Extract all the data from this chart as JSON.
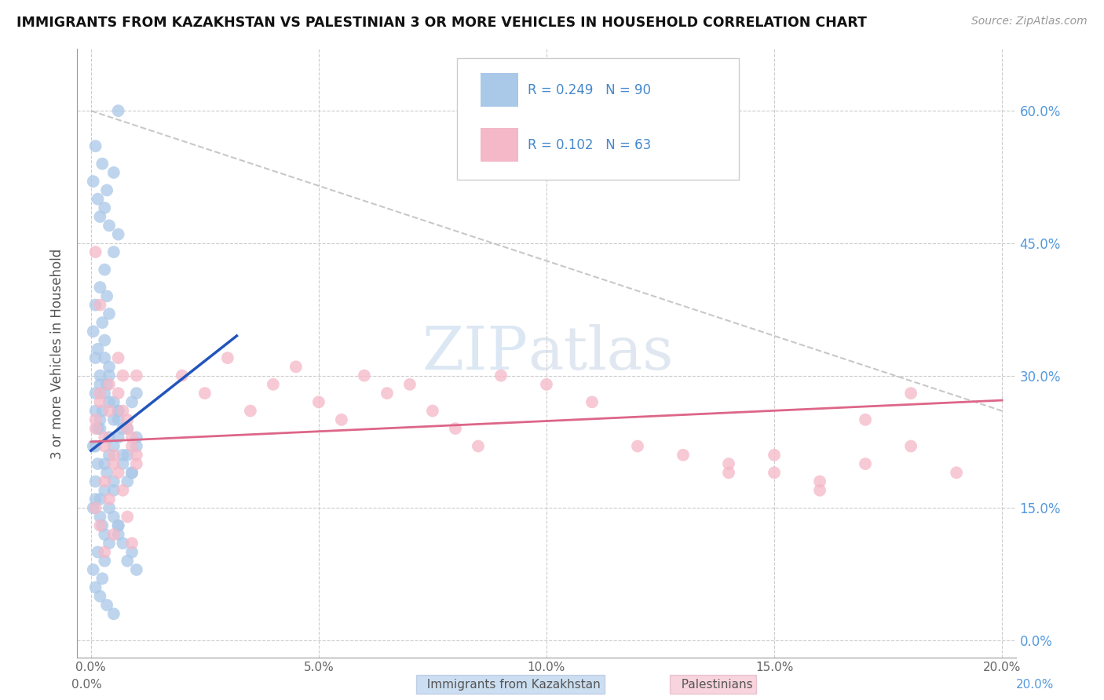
{
  "title": "IMMIGRANTS FROM KAZAKHSTAN VS PALESTINIAN 3 OR MORE VEHICLES IN HOUSEHOLD CORRELATION CHART",
  "source": "Source: ZipAtlas.com",
  "ylabel": "3 or more Vehicles in Household",
  "color_blue": "#aac8e8",
  "color_pink": "#f4b8c8",
  "color_blue_line": "#2255bb",
  "color_pink_line": "#dd6688",
  "color_dashed": "#bbbbbb",
  "watermark_zip": "ZIP",
  "watermark_atlas": "atlas",
  "xlim": [
    0.0,
    0.2
  ],
  "ylim": [
    0.0,
    0.65
  ],
  "x_ticks": [
    0.0,
    0.05,
    0.1,
    0.15,
    0.2
  ],
  "x_tick_labels": [
    "0.0%",
    "5.0%",
    "10.0%",
    "15.0%",
    "20.0%"
  ],
  "y_ticks": [
    0.0,
    0.15,
    0.3,
    0.45,
    0.6
  ],
  "y_tick_labels": [
    "0.0%",
    "15.0%",
    "30.0%",
    "45.0%",
    "60.0%"
  ],
  "legend_r1": "0.249",
  "legend_n1": "90",
  "legend_r2": "0.102",
  "legend_n2": "63",
  "blue_x": [
    0.0005,
    0.001,
    0.0015,
    0.002,
    0.0025,
    0.003,
    0.0035,
    0.004,
    0.005,
    0.006,
    0.0005,
    0.001,
    0.0015,
    0.002,
    0.0025,
    0.003,
    0.0035,
    0.004,
    0.005,
    0.006,
    0.0005,
    0.001,
    0.0015,
    0.002,
    0.0025,
    0.003,
    0.0035,
    0.004,
    0.005,
    0.006,
    0.0005,
    0.001,
    0.0015,
    0.002,
    0.0025,
    0.003,
    0.0035,
    0.004,
    0.005,
    0.006,
    0.0005,
    0.001,
    0.0015,
    0.002,
    0.0025,
    0.003,
    0.0035,
    0.004,
    0.005,
    0.006,
    0.001,
    0.002,
    0.003,
    0.004,
    0.005,
    0.006,
    0.007,
    0.008,
    0.009,
    0.01,
    0.001,
    0.002,
    0.003,
    0.004,
    0.005,
    0.006,
    0.007,
    0.008,
    0.009,
    0.01,
    0.001,
    0.002,
    0.003,
    0.004,
    0.005,
    0.006,
    0.007,
    0.008,
    0.009,
    0.01,
    0.001,
    0.002,
    0.003,
    0.004,
    0.005,
    0.006,
    0.007,
    0.008,
    0.009,
    0.01
  ],
  "blue_y": [
    0.22,
    0.28,
    0.24,
    0.3,
    0.26,
    0.32,
    0.29,
    0.27,
    0.25,
    0.23,
    0.35,
    0.38,
    0.33,
    0.4,
    0.36,
    0.42,
    0.39,
    0.37,
    0.44,
    0.46,
    0.15,
    0.18,
    0.2,
    0.16,
    0.13,
    0.17,
    0.19,
    0.21,
    0.14,
    0.12,
    0.52,
    0.56,
    0.5,
    0.48,
    0.54,
    0.49,
    0.51,
    0.47,
    0.53,
    0.6,
    0.08,
    0.06,
    0.1,
    0.05,
    0.07,
    0.09,
    0.04,
    0.11,
    0.03,
    0.13,
    0.26,
    0.24,
    0.28,
    0.3,
    0.22,
    0.25,
    0.2,
    0.18,
    0.27,
    0.23,
    0.32,
    0.29,
    0.34,
    0.31,
    0.27,
    0.26,
    0.24,
    0.21,
    0.19,
    0.28,
    0.16,
    0.14,
    0.12,
    0.15,
    0.17,
    0.13,
    0.11,
    0.09,
    0.1,
    0.08,
    0.22,
    0.25,
    0.2,
    0.23,
    0.18,
    0.26,
    0.21,
    0.24,
    0.19,
    0.22
  ],
  "pink_x": [
    0.001,
    0.002,
    0.003,
    0.004,
    0.005,
    0.006,
    0.007,
    0.008,
    0.009,
    0.01,
    0.001,
    0.002,
    0.003,
    0.004,
    0.005,
    0.006,
    0.007,
    0.008,
    0.009,
    0.01,
    0.001,
    0.002,
    0.003,
    0.004,
    0.005,
    0.006,
    0.007,
    0.008,
    0.009,
    0.01,
    0.02,
    0.025,
    0.03,
    0.035,
    0.04,
    0.045,
    0.05,
    0.055,
    0.06,
    0.065,
    0.07,
    0.075,
    0.08,
    0.085,
    0.09,
    0.1,
    0.11,
    0.12,
    0.13,
    0.14,
    0.15,
    0.16,
    0.17,
    0.18,
    0.19,
    0.17,
    0.18,
    0.16,
    0.15,
    0.14,
    0.001,
    0.002,
    0.003
  ],
  "pink_y": [
    0.24,
    0.28,
    0.22,
    0.26,
    0.2,
    0.32,
    0.3,
    0.25,
    0.23,
    0.21,
    0.15,
    0.13,
    0.18,
    0.16,
    0.12,
    0.19,
    0.17,
    0.14,
    0.11,
    0.2,
    0.25,
    0.27,
    0.23,
    0.29,
    0.21,
    0.28,
    0.26,
    0.24,
    0.22,
    0.3,
    0.3,
    0.28,
    0.32,
    0.26,
    0.29,
    0.31,
    0.27,
    0.25,
    0.3,
    0.28,
    0.29,
    0.26,
    0.24,
    0.22,
    0.3,
    0.29,
    0.27,
    0.22,
    0.21,
    0.2,
    0.19,
    0.18,
    0.2,
    0.22,
    0.19,
    0.25,
    0.28,
    0.17,
    0.21,
    0.19,
    0.44,
    0.38,
    0.1
  ]
}
